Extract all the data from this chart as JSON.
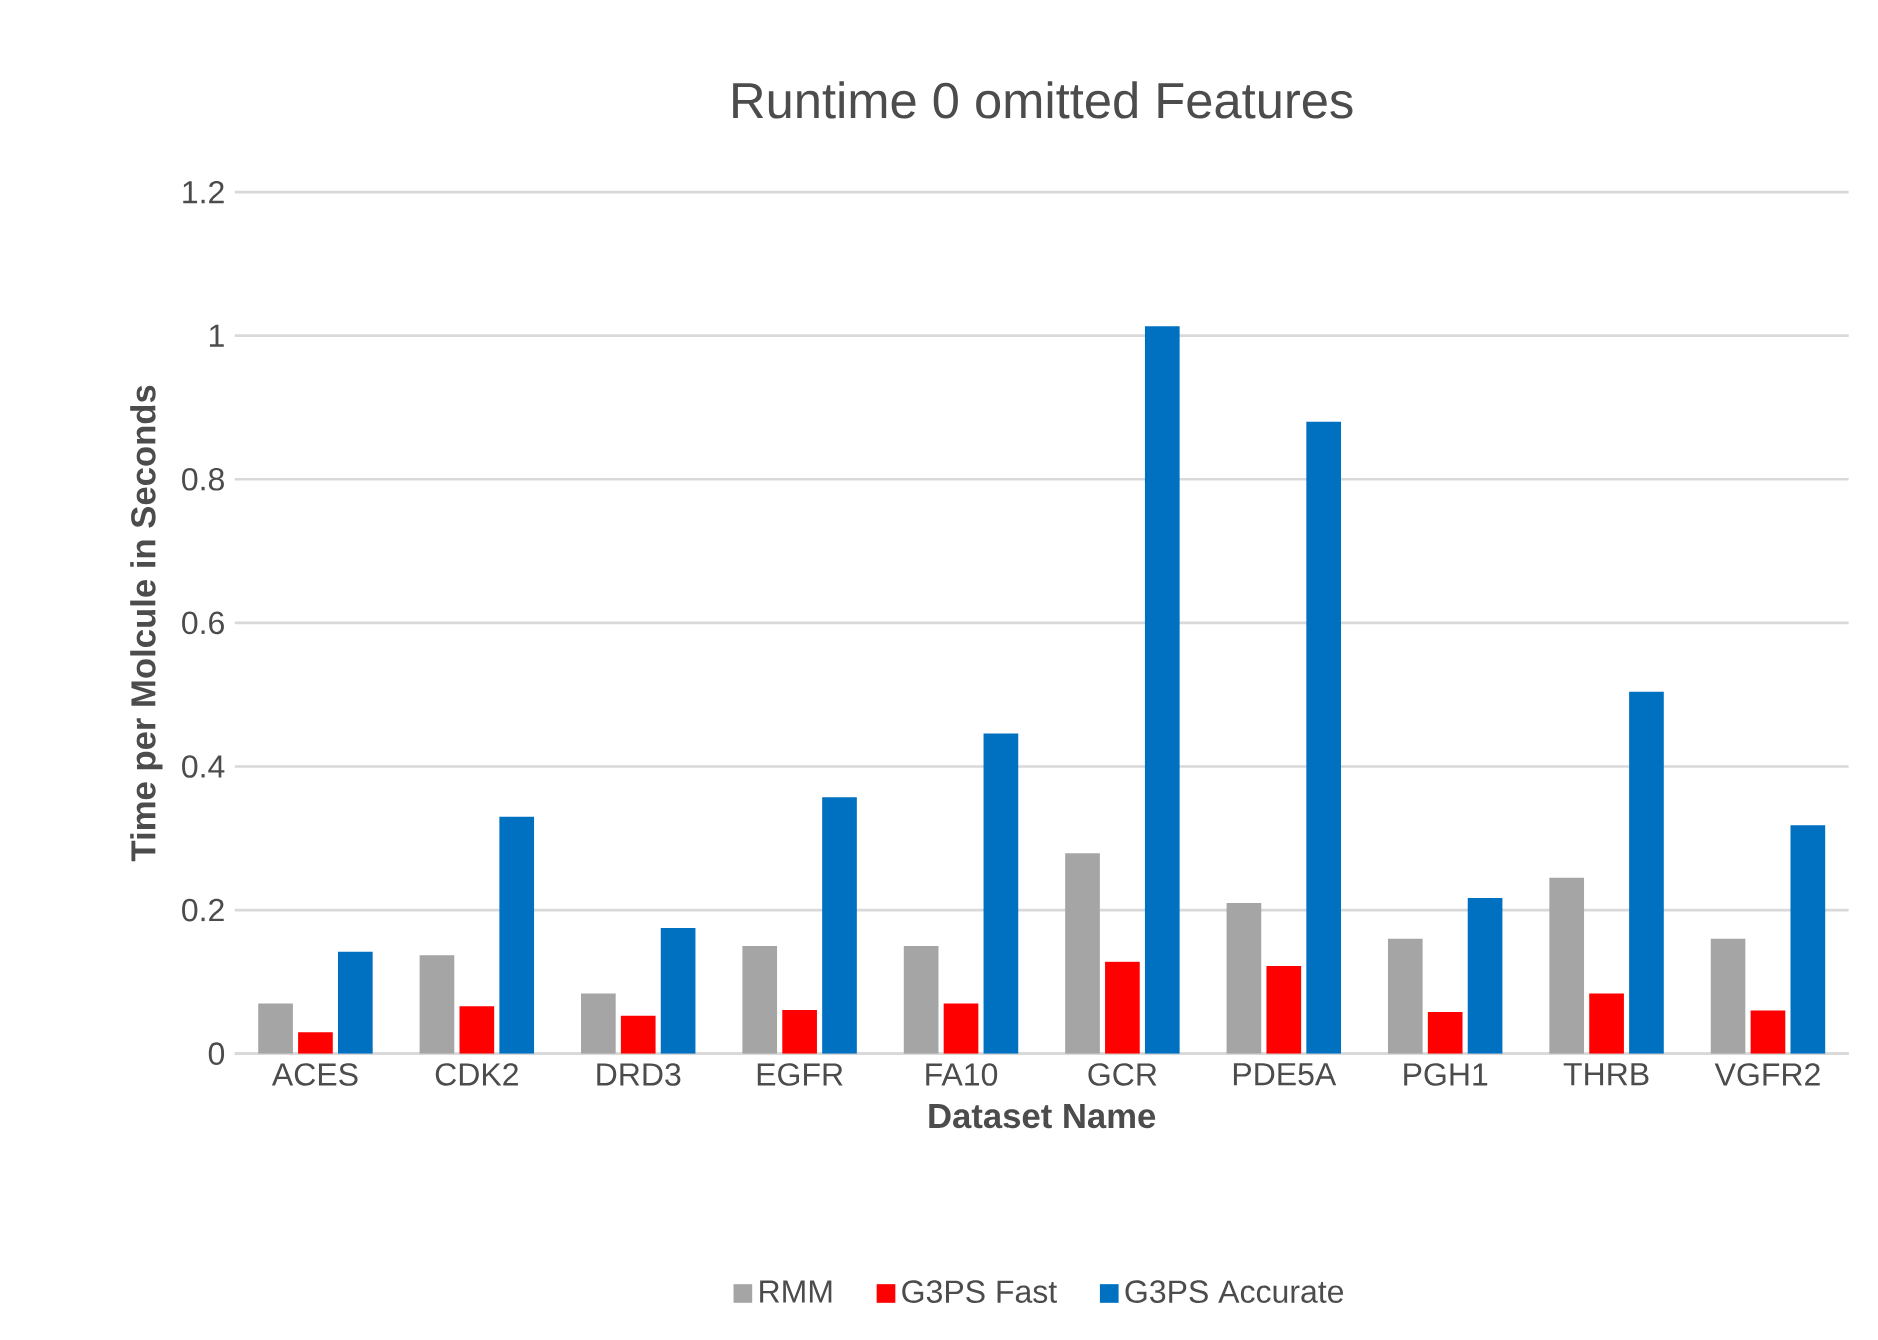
{
  "chart_data": {
    "type": "bar",
    "title": "Runtime 0 omitted Features",
    "xlabel": "Dataset Name",
    "ylabel": "Time per Molcule in Seconds",
    "categories": [
      "ACES",
      "CDK2",
      "DRD3",
      "EGFR",
      "FA10",
      "GCR",
      "PDE5A",
      "PGH1",
      "THRB",
      "VGFR2"
    ],
    "series": [
      {
        "name": "RMM",
        "color": "#a5a5a5",
        "values": [
          0.07,
          0.137,
          0.084,
          0.15,
          0.15,
          0.279,
          0.21,
          0.16,
          0.245,
          0.16
        ]
      },
      {
        "name": "G3PS Fast",
        "color": "#ff0000",
        "values": [
          0.03,
          0.066,
          0.053,
          0.061,
          0.07,
          0.128,
          0.122,
          0.058,
          0.084,
          0.06
        ]
      },
      {
        "name": "G3PS Accurate",
        "color": "#0070c0",
        "values": [
          0.142,
          0.33,
          0.175,
          0.357,
          0.446,
          1.013,
          0.88,
          0.217,
          0.504,
          0.318
        ]
      }
    ],
    "ylim": [
      0,
      1.2
    ],
    "yticks": [
      0,
      0.2,
      0.4,
      0.6,
      0.8,
      1,
      1.2
    ],
    "grid": "y",
    "legend": "bottom"
  }
}
